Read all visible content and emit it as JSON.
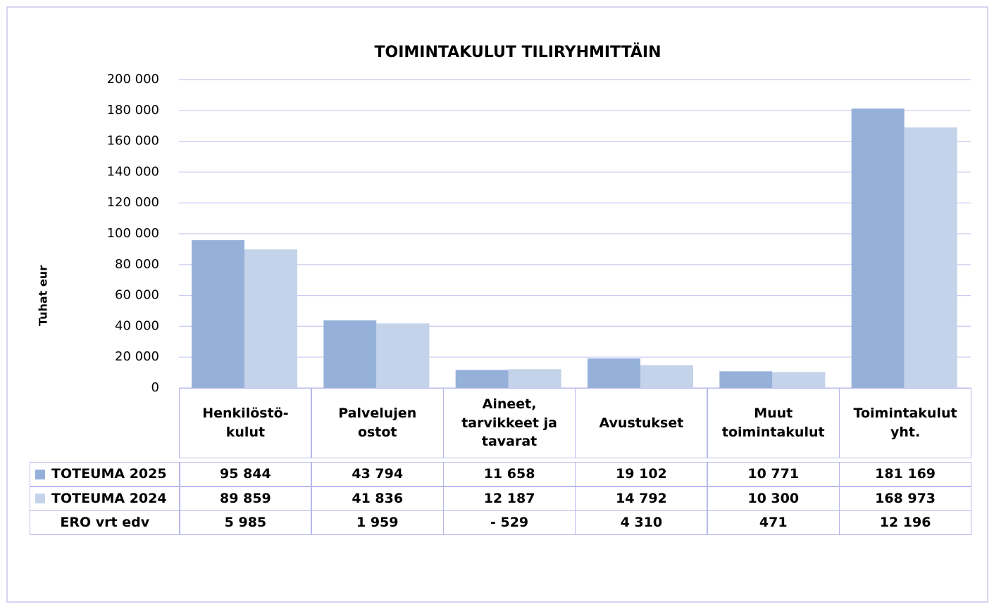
{
  "chart_data": {
    "type": "bar",
    "title": "TOIMINTAKULUT TILIRYHMITTÄIN",
    "y_label": "Tuhat eur",
    "categories": [
      "Henkilöstö-\nkulut",
      "Palvelujen\nostot",
      "Aineet,\ntarvikkeet ja\ntavarat",
      "Avustukset",
      "Muut\ntoimintakulut",
      "Toimintakulut\nyht."
    ],
    "series": [
      {
        "name": "TOTEUMA 2025",
        "color": "#95b1da",
        "values": [
          95844,
          43794,
          11658,
          19102,
          10771,
          181169
        ],
        "value_labels": [
          "95 844",
          "43 794",
          "11 658",
          "19 102",
          "10 771",
          "181 169"
        ]
      },
      {
        "name": "TOTEUMA 2024",
        "color": "#c4d3ea",
        "values": [
          89859,
          41836,
          12187,
          14792,
          10300,
          168973
        ],
        "value_labels": [
          "89 859",
          "41 836",
          "12 187",
          "14 792",
          "10 300",
          "168 973"
        ]
      }
    ],
    "difference": {
      "name": "ERO vrt edv",
      "values": [
        5985,
        1959,
        -529,
        4310,
        471,
        12196
      ],
      "value_labels": [
        "5 985",
        "1 959",
        "- 529",
        "4 310",
        "471",
        "12 196"
      ]
    },
    "ylim": [
      0,
      200000
    ],
    "yticks": [
      0,
      {
        "value": 20000,
        "label": "20 000"
      },
      {
        "value": 40000,
        "label": "40 000"
      },
      {
        "value": 60000,
        "label": "60 000"
      },
      {
        "value": 80000,
        "label": "80 000"
      },
      {
        "value": 100000,
        "label": "100 000"
      },
      {
        "value": 120000,
        "label": "120 000"
      },
      {
        "value": 140000,
        "label": "140 000"
      },
      {
        "value": 160000,
        "label": "160 000"
      },
      {
        "value": 180000,
        "label": "180 000"
      },
      {
        "value": 200000,
        "label": "200 000"
      }
    ],
    "grid": true
  }
}
